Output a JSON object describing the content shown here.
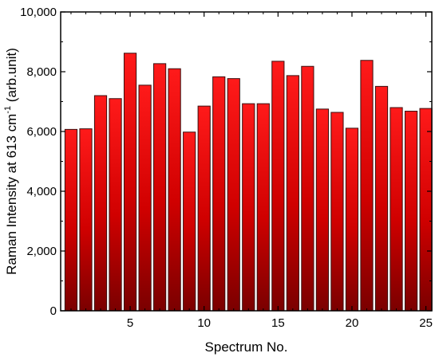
{
  "chart_data": {
    "type": "bar",
    "title": "",
    "xlabel": "Spectrum No.",
    "ylabel": {
      "prefix": "Raman Intensity at 613 cm",
      "superscript": "-1",
      "suffix": " (arb.unit)"
    },
    "x": [
      1,
      2,
      3,
      4,
      5,
      6,
      7,
      8,
      9,
      10,
      11,
      12,
      13,
      14,
      15,
      16,
      17,
      18,
      19,
      20,
      21,
      22,
      23,
      24,
      25
    ],
    "values": [
      6070,
      6090,
      7200,
      7100,
      8620,
      7550,
      8270,
      8100,
      5980,
      6850,
      7830,
      7770,
      6930,
      6930,
      8350,
      7870,
      8180,
      6750,
      6640,
      6110,
      8380,
      7510,
      6800,
      6680,
      6770
    ],
    "xlim": [
      0.3,
      25.4
    ],
    "ylim": [
      0,
      10000
    ],
    "xticks": [
      5,
      10,
      15,
      20,
      25
    ],
    "xtick_labels": [
      "5",
      "10",
      "15",
      "20",
      "25"
    ],
    "yticks": [
      0,
      2000,
      4000,
      6000,
      8000,
      10000
    ],
    "ytick_labels": [
      "0",
      "2,000",
      "4,000",
      "6,000",
      "8,000",
      "10,000"
    ],
    "grid": false,
    "legend": "none",
    "colors": {
      "bar_top": "#ff1a1a",
      "bar_bottom": "#7a0000",
      "bar_edge": "#3a1010",
      "axis": "#000000"
    }
  }
}
